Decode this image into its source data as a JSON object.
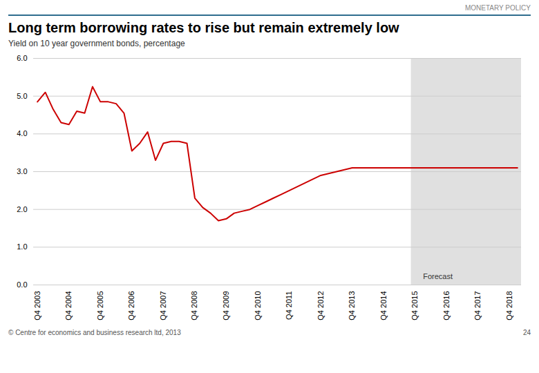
{
  "chart_data": {
    "type": "line",
    "title": "Long term borrowing rates to rise but remain extremely low",
    "subtitle": "Yield on 10 year government bonds, percentage",
    "header_label": "MONETARY POLICY",
    "footer": "© Centre for economics and business research ltd, 2013",
    "page_number": "24",
    "categories": [
      "Q4 2003",
      null,
      null,
      null,
      "Q4 2004",
      null,
      null,
      null,
      "Q4 2005",
      null,
      null,
      null,
      "Q4 2006",
      null,
      null,
      null,
      "Q4 2007",
      null,
      null,
      null,
      "Q4 2008",
      null,
      null,
      null,
      "Q4 2009",
      null,
      null,
      null,
      "Q4 2010",
      null,
      null,
      null,
      "Q4 2011",
      null,
      null,
      null,
      "Q4 2012",
      null,
      null,
      null,
      "Q4 2013",
      null,
      null,
      null,
      "Q4 2014",
      null,
      null,
      null,
      "Q4 2015",
      null,
      null,
      null,
      "Q4 2016",
      null,
      null,
      null,
      "Q4 2017",
      null,
      null,
      null,
      "Q4 2018",
      null
    ],
    "values": [
      4.85,
      5.1,
      4.65,
      4.3,
      4.25,
      4.6,
      4.55,
      5.25,
      4.85,
      4.85,
      4.8,
      4.55,
      3.55,
      3.75,
      4.05,
      3.3,
      3.75,
      3.8,
      3.8,
      3.75,
      2.3,
      2.05,
      1.9,
      1.7,
      1.75,
      1.9,
      1.95,
      2.0,
      2.1,
      2.2,
      2.3,
      2.4,
      2.5,
      2.6,
      2.7,
      2.8,
      2.9,
      2.95,
      3.0,
      3.05,
      3.1,
      3.1,
      3.1,
      3.1,
      3.1,
      3.1,
      3.1,
      3.1,
      3.1,
      3.1,
      3.1,
      3.1,
      3.1,
      3.1,
      3.1,
      3.1,
      3.1,
      3.1,
      3.1,
      3.1,
      3.1,
      3.1
    ],
    "color": "#cc0000",
    "ylim": [
      0,
      6
    ],
    "yticks": [
      0,
      1,
      2,
      3,
      4,
      5,
      6
    ],
    "grid": true,
    "annotations": [
      {
        "text": "Forecast",
        "x": "Q4 2015",
        "y": 0.15,
        "color": "#e0e0e0"
      }
    ]
  }
}
